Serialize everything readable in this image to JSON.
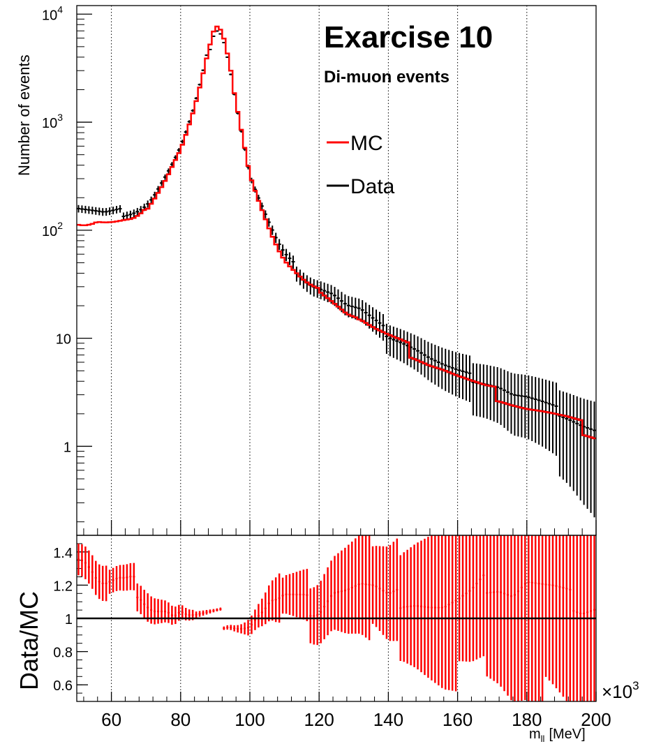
{
  "chart_data": [
    {
      "type": "line",
      "panel": "main",
      "title": "Exarcise 10",
      "subtitle": "Di-muon events",
      "ylabel": "Number of events",
      "y_scale": "log",
      "xlim": [
        50,
        200
      ],
      "ylim": [
        0.15,
        12000
      ],
      "x_multiplier_label": "×10",
      "x_multiplier_exponent": "3",
      "x_ticks": [
        60,
        80,
        100,
        120,
        140,
        160,
        180,
        200
      ],
      "x_tick_labels": [
        "60",
        "80",
        "100",
        "120",
        "140",
        "160",
        "180",
        "200"
      ],
      "y_ticks": [
        {
          "value": 1,
          "label": "1",
          "exp": ""
        },
        {
          "value": 10,
          "label": "10",
          "exp": ""
        },
        {
          "value": 100,
          "label": "10",
          "exp": "2"
        },
        {
          "value": 1000,
          "label": "10",
          "exp": "3"
        },
        {
          "value": 10000,
          "label": "10",
          "exp": "4"
        }
      ],
      "grid": "vertical dotted",
      "legend": {
        "position": "top-right",
        "entries": [
          "MC",
          "Data"
        ]
      },
      "series": [
        {
          "name": "MC",
          "color": "#ff0000",
          "style": "step",
          "x": [
            50,
            52,
            54,
            56,
            58,
            60,
            62,
            64,
            66,
            68,
            70,
            72,
            74,
            76,
            78,
            80,
            82,
            84,
            86,
            88,
            90,
            92,
            94,
            96,
            98,
            100,
            102,
            104,
            106,
            108,
            110,
            112,
            114,
            116,
            118,
            120,
            124,
            128,
            132,
            136,
            140,
            144,
            148,
            152,
            156,
            160,
            164,
            168,
            172,
            176,
            180,
            184,
            188,
            192,
            196,
            200
          ],
          "values": [
            115,
            112,
            114,
            120,
            118,
            118,
            120,
            123,
            125,
            135,
            155,
            190,
            240,
            310,
            420,
            560,
            850,
            1350,
            2400,
            4500,
            7800,
            6800,
            3600,
            1550,
            720,
            330,
            210,
            140,
            95,
            68,
            52,
            44,
            38,
            33,
            30,
            28,
            22,
            17,
            15,
            12,
            10,
            8.5,
            7.2,
            6.0,
            5.2,
            4.4,
            3.8,
            3.3,
            3.0,
            2.6,
            2.3,
            2.1,
            1.9,
            1.7,
            1.5,
            1.3
          ]
        },
        {
          "name": "Data",
          "color": "#000000",
          "style": "errorbar",
          "x": [
            50,
            52,
            54,
            56,
            58,
            60,
            62,
            64,
            66,
            68,
            70,
            72,
            74,
            76,
            78,
            80,
            82,
            84,
            86,
            88,
            90,
            92,
            94,
            96,
            98,
            100,
            102,
            104,
            106,
            108,
            110,
            112,
            114,
            116,
            118,
            120,
            124,
            128,
            132,
            136,
            140,
            144,
            148,
            152,
            156,
            160,
            164,
            168,
            172,
            176,
            180,
            184,
            188,
            192,
            196,
            200
          ],
          "values": [
            160,
            155,
            150,
            145,
            140,
            142,
            145,
            148,
            152,
            160,
            175,
            205,
            260,
            330,
            430,
            580,
            860,
            1360,
            2400,
            4500,
            7800,
            6800,
            3600,
            1520,
            700,
            320,
            215,
            150,
            105,
            75,
            58,
            49,
            42,
            36,
            32,
            30,
            26,
            20,
            18,
            14,
            11,
            9.5,
            8.0,
            6.5,
            5.5,
            4.8,
            4.3,
            4.0,
            3.6,
            3.0,
            2.8,
            2.5,
            2.2,
            1.9,
            1.6,
            1.4
          ]
        }
      ]
    },
    {
      "type": "scatter",
      "panel": "ratio",
      "ylabel": "Data/MC",
      "xlabel": "m",
      "xlabel_sub": "ll",
      "xlabel_unit": "[MeV]",
      "xlim": [
        50,
        200
      ],
      "ylim": [
        0.5,
        1.5
      ],
      "reference_line": 1,
      "x_ticks": [
        60,
        80,
        100,
        120,
        140,
        160,
        180,
        200
      ],
      "y_ticks": [
        0.6,
        0.8,
        1,
        1.2,
        1.4
      ],
      "y_tick_labels": [
        "0.6",
        "0.8",
        "1",
        "1.2",
        "1.4"
      ],
      "series": [
        {
          "name": "Data/MC",
          "color": "#ff0000",
          "x": [
            50,
            52,
            54,
            56,
            58,
            60,
            62,
            64,
            66,
            68,
            70,
            72,
            74,
            76,
            78,
            80,
            82,
            84,
            86,
            88,
            90,
            92,
            94,
            96,
            98,
            100,
            102,
            104,
            106,
            108,
            110,
            112,
            114,
            116,
            118,
            120,
            124,
            128,
            132,
            136,
            140,
            144,
            148,
            152,
            156,
            160,
            164,
            168,
            172,
            176,
            180,
            184,
            188,
            192,
            196,
            200
          ],
          "values": [
            1.38,
            1.36,
            1.3,
            1.22,
            1.19,
            1.2,
            1.21,
            1.2,
            1.2,
            1.18,
            1.12,
            1.08,
            1.07,
            1.06,
            1.02,
            1.04,
            1.01,
            1.0,
            1.0,
            1.0,
            1.0,
            1.0,
            1.0,
            0.98,
            0.97,
            0.97,
            1.02,
            1.05,
            1.1,
            1.1,
            1.12,
            1.11,
            1.1,
            1.09,
            1.07,
            1.07,
            1.18,
            1.18,
            1.2,
            1.17,
            1.1,
            1.12,
            1.11,
            1.08,
            1.06,
            1.09,
            1.13,
            1.21,
            1.2,
            1.15,
            1.22,
            1.19,
            1.16,
            1.12,
            1.07,
            1.08
          ],
          "errors": [
            0.09,
            0.09,
            0.09,
            0.09,
            0.09,
            0.09,
            0.09,
            0.09,
            0.09,
            0.09,
            0.09,
            0.08,
            0.07,
            0.06,
            0.05,
            0.04,
            0.03,
            0.025,
            0.02,
            0.015,
            0.01,
            0.01,
            0.015,
            0.02,
            0.03,
            0.05,
            0.06,
            0.08,
            0.1,
            0.12,
            0.14,
            0.15,
            0.16,
            0.17,
            0.18,
            0.19,
            0.21,
            0.24,
            0.26,
            0.29,
            0.32,
            0.34,
            0.37,
            0.4,
            0.43,
            0.46,
            0.5,
            0.53,
            0.56,
            0.6,
            0.63,
            0.67,
            0.71,
            0.75,
            0.8,
            0.85
          ]
        }
      ]
    }
  ]
}
